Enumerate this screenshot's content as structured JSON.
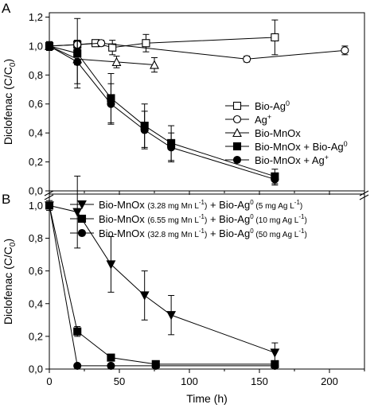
{
  "chart_data": [
    {
      "panel": "A",
      "type": "scatter",
      "ylabel": "Diclofenac (C/C0)",
      "xlim": [
        0,
        225
      ],
      "ylim": [
        0,
        1.2
      ],
      "yticks": [
        "0,0",
        "0,2",
        "0,4",
        "0,6",
        "0,8",
        "1,0",
        "1,2"
      ],
      "grid": false,
      "legend_placement": "right",
      "series": [
        {
          "name": "Bio-Ag0",
          "marker": "square-open",
          "color": "#000000",
          "points": [
            {
              "x": 0,
              "y": 1.0,
              "err": 0.03
            },
            {
              "x": 20,
              "y": 1.01,
              "err": 0.03
            },
            {
              "x": 33,
              "y": 1.02,
              "err": 0.02
            },
            {
              "x": 45,
              "y": 0.99,
              "err": 0.05
            },
            {
              "x": 69,
              "y": 1.02,
              "err": 0.06
            },
            {
              "x": 161,
              "y": 1.06,
              "err": 0.12
            }
          ]
        },
        {
          "name": "Ag+",
          "marker": "circle-open",
          "color": "#000000",
          "points": [
            {
              "x": 0,
              "y": 1.0,
              "err": 0.02
            },
            {
              "x": 20,
              "y": 1.01,
              "err": 0.02
            },
            {
              "x": 37,
              "y": 1.02,
              "err": 0.02
            },
            {
              "x": 141,
              "y": 0.91,
              "err": 0.02
            },
            {
              "x": 211,
              "y": 0.97,
              "err": 0.03
            }
          ]
        },
        {
          "name": "Bio-MnOx",
          "marker": "triangle-open",
          "color": "#000000",
          "points": [
            {
              "x": 0,
              "y": 1.0,
              "err": 0.03
            },
            {
              "x": 20,
              "y": 0.91,
              "err": 0.04
            },
            {
              "x": 48,
              "y": 0.89,
              "err": 0.04
            },
            {
              "x": 75,
              "y": 0.87,
              "err": 0.05
            }
          ]
        },
        {
          "name": "Bio-MnOx + Bio-Ag0",
          "marker": "square-filled",
          "color": "#000000",
          "points": [
            {
              "x": 0,
              "y": 1.0,
              "err": 0.03
            },
            {
              "x": 20,
              "y": 0.95,
              "err": 0.24
            },
            {
              "x": 44,
              "y": 0.64,
              "err": 0.17
            },
            {
              "x": 68,
              "y": 0.45,
              "err": 0.15
            },
            {
              "x": 87,
              "y": 0.33,
              "err": 0.12
            },
            {
              "x": 161,
              "y": 0.1,
              "err": 0.05
            }
          ]
        },
        {
          "name": "Bio-MnOx + Ag+",
          "marker": "circle-filled",
          "color": "#000000",
          "points": [
            {
              "x": 0,
              "y": 1.0,
              "err": 0.03
            },
            {
              "x": 20,
              "y": 0.89,
              "err": 0.15
            },
            {
              "x": 44,
              "y": 0.6,
              "err": 0.14
            },
            {
              "x": 68,
              "y": 0.42,
              "err": 0.13
            },
            {
              "x": 87,
              "y": 0.3,
              "err": 0.1
            },
            {
              "x": 161,
              "y": 0.08,
              "err": 0.04
            }
          ]
        }
      ]
    },
    {
      "panel": "B",
      "type": "scatter",
      "xlabel": "Time (h)",
      "ylabel": "Diclofenac (C/C0)",
      "xlim": [
        0,
        225
      ],
      "ylim": [
        0,
        1.05
      ],
      "xticks": [
        "0",
        "50",
        "100",
        "150",
        "200"
      ],
      "yticks": [
        "0,0",
        "0,2",
        "0,4",
        "0,6",
        "0,8",
        "1,0"
      ],
      "grid": false,
      "legend_placement": "top-right",
      "series": [
        {
          "name": "Bio-MnOx (3.28 mg Mn L-1) + Bio-Ag0 (5 mg Ag L-1)",
          "marker": "triangle-down-filled",
          "color": "#000000",
          "points": [
            {
              "x": 0,
              "y": 1.0,
              "err": 0.02
            },
            {
              "x": 20,
              "y": 0.96,
              "err": 0.22
            },
            {
              "x": 44,
              "y": 0.64,
              "err": 0.17
            },
            {
              "x": 68,
              "y": 0.45,
              "err": 0.15
            },
            {
              "x": 87,
              "y": 0.33,
              "err": 0.12
            },
            {
              "x": 161,
              "y": 0.1,
              "err": 0.06
            }
          ]
        },
        {
          "name": "Bio-MnOx (6.55 mg Mn L-1) + Bio-Ag0 (10 mg Ag L-1)",
          "marker": "square-filled",
          "color": "#000000",
          "points": [
            {
              "x": 0,
              "y": 1.0,
              "err": 0.03
            },
            {
              "x": 20,
              "y": 0.23,
              "err": 0.03
            },
            {
              "x": 44,
              "y": 0.07,
              "err": 0.02
            },
            {
              "x": 76,
              "y": 0.03,
              "err": 0.01
            },
            {
              "x": 161,
              "y": 0.03,
              "err": 0.01
            }
          ]
        },
        {
          "name": "Bio-MnOx (32.8 mg Mn L-1) + Bio-Ag0 (50 mg Ag L-1)",
          "marker": "circle-filled",
          "color": "#000000",
          "points": [
            {
              "x": 0,
              "y": 1.0,
              "err": 0.02
            },
            {
              "x": 20,
              "y": 0.02,
              "err": 0.01
            },
            {
              "x": 44,
              "y": 0.02,
              "err": 0.01
            },
            {
              "x": 76,
              "y": 0.02,
              "err": 0.01
            },
            {
              "x": 161,
              "y": 0.02,
              "err": 0.01
            }
          ]
        }
      ]
    }
  ],
  "panels": {
    "A": {
      "letter": "A",
      "ylabel_main": "Diclofenac (C/C",
      "ylabel_sub": "0",
      "ylabel_end": ")",
      "legend": [
        {
          "main": "Bio-Ag",
          "sup": "0",
          "end": ""
        },
        {
          "main": "Ag",
          "sup": "+",
          "end": ""
        },
        {
          "main": "Bio-MnOx",
          "sup": "",
          "end": ""
        },
        {
          "main": "Bio-MnOx + Bio-Ag",
          "sup": "0",
          "end": ""
        },
        {
          "main": "Bio-MnOx + Ag",
          "sup": "+",
          "end": ""
        }
      ]
    },
    "B": {
      "letter": "B",
      "ylabel_main": "Diclofenac (C/C",
      "ylabel_sub": "0",
      "ylabel_end": ")",
      "xlabel": "Time (h)",
      "legend": [
        {
          "p1": "Bio-MnOx ",
          "s1": "(3.28 mg Mn L",
          "sup1": "-1",
          "e1": ")",
          "p2": " + Bio-Ag",
          "sup2": "0",
          "s2": " (5 mg Ag L",
          "sup3": "-1",
          "e2": ")"
        },
        {
          "p1": "Bio-MnOx ",
          "s1": "(6.55 mg Mn L",
          "sup1": "-1",
          "e1": ")",
          "p2": " + Bio-Ag",
          "sup2": "0",
          "s2": " (10 mg Ag L",
          "sup3": "-1",
          "e2": ")"
        },
        {
          "p1": "Bio-MnOx ",
          "s1": "(32.8 mg Mn L",
          "sup1": "-1",
          "e1": ")",
          "p2": " + Bio-Ag",
          "sup2": "0",
          "s2": " (50 mg Ag L",
          "sup3": "-1",
          "e2": ")"
        }
      ]
    }
  }
}
